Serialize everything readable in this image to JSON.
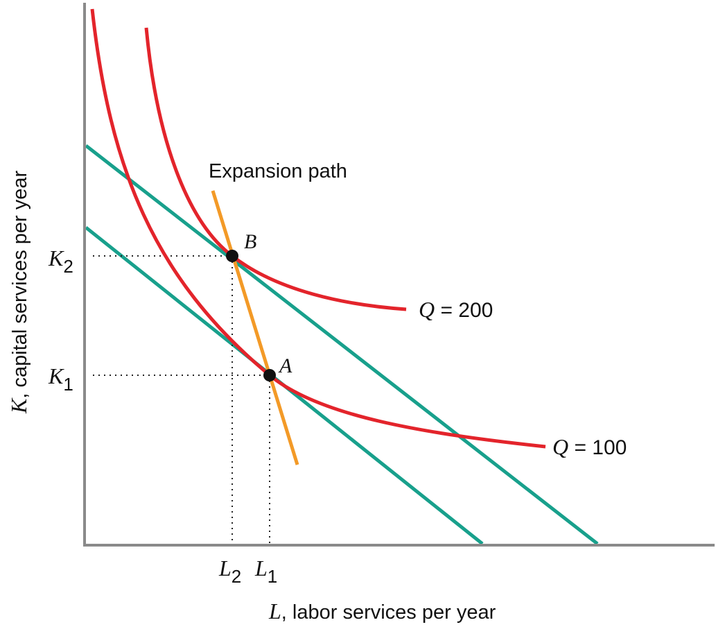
{
  "axes": {
    "x_var": "L",
    "x_label": ", labor services per year",
    "y_var": "K",
    "y_label": ", capital services per year"
  },
  "ticks": {
    "k2": {
      "var": "K",
      "sub": "2"
    },
    "k1": {
      "var": "K",
      "sub": "1"
    },
    "l2": {
      "var": "L",
      "sub": "2"
    },
    "l1": {
      "var": "L",
      "sub": "1"
    }
  },
  "expansion_path": {
    "label": "Expansion path",
    "color": "#f39a27"
  },
  "isoquants": [
    {
      "id": "q200",
      "var": "Q",
      "text": " = 200",
      "color": "#e3242b"
    },
    {
      "id": "q100",
      "var": "Q",
      "text": " = 100",
      "color": "#e3242b"
    }
  ],
  "isocost_color": "#18a08c",
  "points": {
    "a": {
      "label": "A"
    },
    "b": {
      "label": "B"
    }
  }
}
